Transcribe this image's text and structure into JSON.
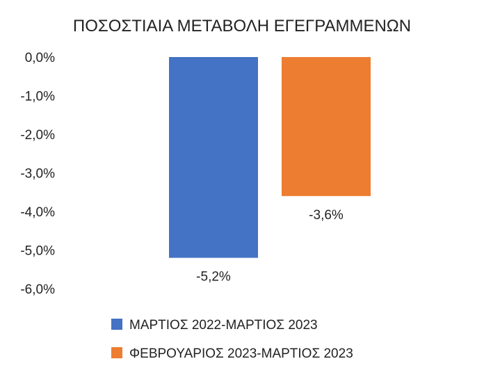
{
  "chart_data": {
    "type": "bar",
    "title": "ΠΟΣΟΣΤΙΑΙΑ ΜΕΤΑΒΟΛΗ ΕΓΕΓΡΑΜΜΕΝΩΝ",
    "xlabel": "",
    "ylabel": "",
    "ylim": [
      -6.0,
      0.0
    ],
    "yticks": [
      0,
      -1,
      -2,
      -3,
      -4,
      -5,
      -6
    ],
    "ytick_labels": [
      "0,0%",
      "-1,0%",
      "-2,0%",
      "-3,0%",
      "-4,0%",
      "-5,0%",
      "-6,0%"
    ],
    "grid": false,
    "legend_position": "bottom",
    "series": [
      {
        "name": "ΜΑΡΤΙΟΣ 2022-ΜΑΡΤΙΟΣ 2023",
        "value": -5.2,
        "label": "-5,2%",
        "color": "#4472C4"
      },
      {
        "name": "ΦΕΒΡΟΥΑΡΙΟΣ 2023-ΜΑΡΤΙΟΣ 2023",
        "value": -3.6,
        "label": "-3,6%",
        "color": "#ED7D31"
      }
    ]
  }
}
